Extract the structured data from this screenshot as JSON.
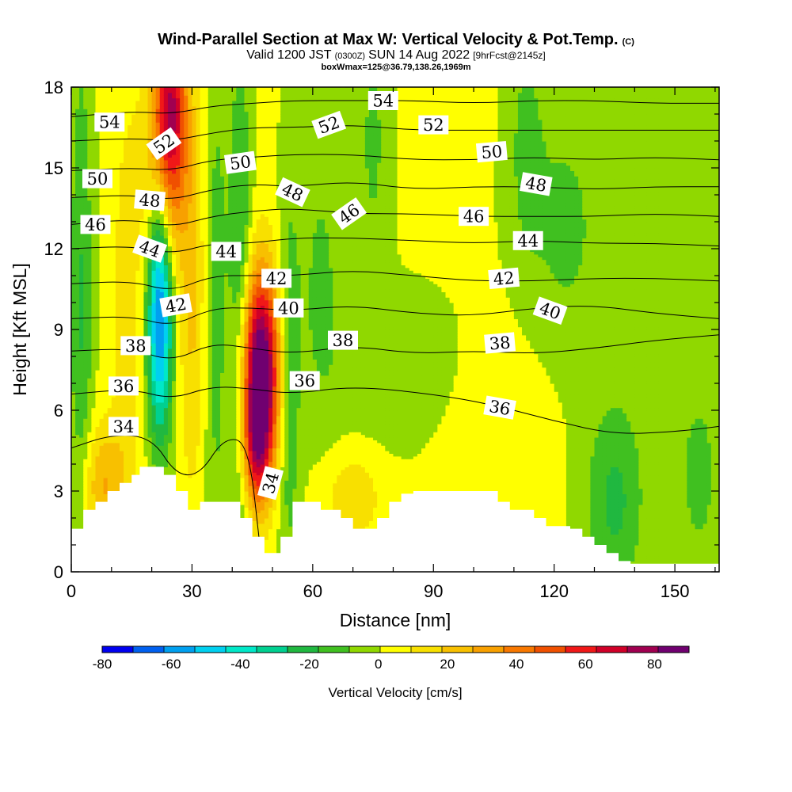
{
  "chart_data": {
    "type": "heatmap",
    "title": "Wind-Parallel Section at Max W: Vertical Velocity & Pot.Temp.",
    "copyright_mark": "(C)",
    "valid_prefix": "Valid 1200 JST",
    "valid_utc": "(0300Z)",
    "valid_date": "SUN 14 Aug 2022",
    "forecast": "[9hrFcst@2145z]",
    "box_info": "boxWmax=125@36.79,138.26,1969m",
    "xlabel": "Distance [nm]",
    "ylabel": "Height [Kft MSL]",
    "xlim": [
      0,
      161
    ],
    "ylim": [
      0,
      18
    ],
    "xticks": [
      0,
      30,
      60,
      90,
      120,
      150
    ],
    "yticks": [
      0,
      3,
      6,
      9,
      12,
      15,
      18
    ],
    "colorbar": {
      "label": "Vertical Velocity [cm/s]",
      "range": [
        -80,
        90
      ],
      "tick_values": [
        -80,
        -60,
        -40,
        -20,
        0,
        20,
        40,
        60,
        80
      ],
      "tick_labels": [
        "-80",
        "-60",
        "-40",
        "-20",
        "0",
        "20",
        "40",
        "60",
        "80"
      ],
      "colors": [
        "#0000f0",
        "#0060f0",
        "#00a0f0",
        "#00d0f0",
        "#00e8c8",
        "#00d090",
        "#20b840",
        "#40c020",
        "#90d800",
        "#ffff00",
        "#f8e000",
        "#f8c000",
        "#f8a000",
        "#f87800",
        "#f05000",
        "#f01818",
        "#d00028",
        "#a00050",
        "#700070"
      ]
    },
    "terrain": {
      "x": [
        0,
        3,
        3,
        6,
        6,
        9,
        9,
        12,
        12,
        15,
        15,
        17,
        17,
        23,
        23,
        26,
        26,
        29,
        29,
        32,
        32,
        35,
        35,
        42,
        42,
        45,
        45,
        48,
        48,
        52,
        52,
        55,
        55,
        58,
        58,
        62,
        62,
        67,
        67,
        70,
        70,
        73,
        73,
        76,
        76,
        79,
        79,
        82,
        82,
        85,
        85,
        94,
        94,
        106,
        106,
        109,
        109,
        112,
        112,
        115,
        115,
        118,
        118,
        124,
        124,
        127,
        127,
        130,
        130,
        133,
        133,
        136,
        136,
        139,
        139,
        142,
        142,
        145,
        145,
        161
      ],
      "height": [
        1.6,
        1.6,
        2.3,
        2.3,
        2.6,
        2.6,
        3.0,
        3.0,
        3.3,
        3.3,
        3.6,
        3.6,
        3.9,
        3.9,
        3.6,
        3.6,
        3.0,
        3.0,
        2.3,
        2.3,
        2.6,
        2.6,
        2.6,
        2.6,
        2.0,
        2.0,
        1.3,
        1.3,
        0.7,
        0.7,
        1.3,
        1.3,
        2.6,
        2.6,
        2.6,
        2.6,
        2.3,
        2.3,
        2.0,
        2.0,
        1.6,
        1.6,
        1.6,
        1.6,
        2.0,
        2.0,
        2.6,
        2.6,
        2.9,
        2.9,
        3.0,
        3.0,
        3.0,
        3.0,
        2.6,
        2.6,
        2.3,
        2.3,
        2.3,
        2.3,
        2.0,
        2.0,
        1.7,
        1.7,
        1.6,
        1.6,
        1.3,
        1.3,
        1.0,
        1.0,
        0.7,
        0.7,
        0.4,
        0.4,
        0.3,
        0.3,
        0.3,
        0.3,
        0.3,
        0.3
      ]
    },
    "w_features": [
      {
        "kind": "updraft",
        "x": 47,
        "height": 7.5,
        "sx": 3.4,
        "sz": 2.6,
        "w": 95
      },
      {
        "kind": "updraft",
        "x": 46,
        "height": 4.5,
        "sx": 2.5,
        "sz": 1.6,
        "w": 40
      },
      {
        "kind": "updraft",
        "x": 24,
        "height": 15.5,
        "sx": 3.4,
        "sz": 2.6,
        "w": 55
      },
      {
        "kind": "updraft",
        "x": 25,
        "height": 18.0,
        "sx": 2.6,
        "sz": 1.8,
        "w": 35
      },
      {
        "kind": "updraft",
        "x": 30,
        "height": 10.0,
        "sx": 2.4,
        "sz": 5.0,
        "w": 18
      },
      {
        "kind": "updraft",
        "x": 14,
        "height": 10.0,
        "sx": 3.0,
        "sz": 6.0,
        "w": 12
      },
      {
        "kind": "updraft",
        "x": 8,
        "height": 3.2,
        "sx": 4.0,
        "sz": 1.6,
        "w": 25
      },
      {
        "kind": "updraft",
        "x": 70,
        "height": 2.8,
        "sx": 5.0,
        "sz": 1.2,
        "w": 15
      },
      {
        "kind": "updraft",
        "x": 107,
        "height": 5.0,
        "sx": 10.0,
        "sz": 3.0,
        "w": 6
      },
      {
        "kind": "downdraft",
        "x": 22,
        "height": 8.5,
        "sx": 2.2,
        "sz": 2.8,
        "w": -50
      },
      {
        "kind": "downdraft",
        "x": 22,
        "height": 12.0,
        "sx": 2.0,
        "sz": 2.5,
        "w": -30
      },
      {
        "kind": "downdraft",
        "x": 42,
        "height": 9.5,
        "sx": 2.0,
        "sz": 7.0,
        "w": -25
      },
      {
        "kind": "downdraft",
        "x": 36,
        "height": 10.0,
        "sx": 2.0,
        "sz": 7.0,
        "w": -15
      },
      {
        "kind": "downdraft",
        "x": 2.5,
        "height": 10.0,
        "sx": 2.0,
        "sz": 7.0,
        "w": -20
      },
      {
        "kind": "downdraft",
        "x": 54,
        "height": 7.0,
        "sx": 2.0,
        "sz": 5.0,
        "w": -20
      },
      {
        "kind": "downdraft",
        "x": 62,
        "height": 11.0,
        "sx": 4.0,
        "sz": 4.0,
        "w": -12
      },
      {
        "kind": "downdraft",
        "x": 75,
        "height": 16.0,
        "sx": 3.0,
        "sz": 4.0,
        "w": -12
      },
      {
        "kind": "downdraft",
        "x": 80,
        "height": 7.5,
        "sx": 12.0,
        "sz": 2.0,
        "w": -8
      },
      {
        "kind": "downdraft",
        "x": 113,
        "height": 16.0,
        "sx": 3.0,
        "sz": 3.0,
        "w": -12
      },
      {
        "kind": "downdraft",
        "x": 122,
        "height": 13.0,
        "sx": 6.0,
        "sz": 3.0,
        "w": -10
      },
      {
        "kind": "downdraft",
        "x": 135,
        "height": 2.5,
        "sx": 5.0,
        "sz": 2.5,
        "w": -20
      },
      {
        "kind": "downdraft",
        "x": 156,
        "height": 3.5,
        "sx": 3.0,
        "sz": 2.0,
        "w": -15
      },
      {
        "kind": "downdraft",
        "x": 140,
        "height": 11.0,
        "sx": 20.0,
        "sz": 6.0,
        "w": -5
      }
    ],
    "theta_contours": [
      {
        "value": 34,
        "x": [
          0,
          10,
          20,
          26,
          32,
          38,
          44,
          47
        ],
        "height": [
          4.6,
          5.1,
          5.0,
          3.6,
          3.6,
          5.0,
          4.8,
          0.8
        ]
      },
      {
        "value": 36,
        "x": [
          0,
          15,
          25,
          35,
          45,
          55,
          70,
          90,
          105,
          120,
          135,
          150,
          161
        ],
        "height": [
          6.6,
          6.8,
          6.4,
          6.9,
          6.8,
          6.6,
          6.9,
          6.6,
          6.2,
          5.6,
          5.1,
          5.2,
          5.4
        ]
      },
      {
        "value": 38,
        "x": [
          0,
          15,
          25,
          35,
          45,
          55,
          70,
          85,
          100,
          115,
          130,
          145,
          161
        ],
        "height": [
          8.2,
          8.3,
          7.8,
          8.5,
          8.3,
          8.1,
          8.4,
          8.1,
          8.2,
          8.1,
          8.3,
          8.6,
          8.8
        ]
      },
      {
        "value": 40,
        "x": [
          0,
          15,
          25,
          35,
          45,
          55,
          70,
          85,
          100,
          115,
          130,
          145,
          161
        ],
        "height": [
          9.4,
          9.5,
          9.1,
          9.8,
          9.8,
          9.7,
          9.9,
          9.6,
          9.5,
          9.8,
          9.9,
          9.6,
          9.4
        ]
      },
      {
        "value": 42,
        "x": [
          0,
          15,
          25,
          35,
          45,
          55,
          70,
          85,
          100,
          115,
          130,
          145,
          161
        ],
        "height": [
          10.7,
          10.8,
          10.4,
          11.0,
          11.0,
          11.0,
          11.2,
          11.0,
          10.8,
          10.8,
          10.9,
          10.9,
          10.8
        ]
      },
      {
        "value": 44,
        "x": [
          0,
          15,
          25,
          35,
          45,
          55,
          70,
          85,
          100,
          115,
          130,
          145,
          161
        ],
        "height": [
          12.0,
          12.1,
          11.8,
          12.2,
          12.2,
          12.4,
          12.4,
          12.3,
          12.2,
          12.3,
          12.2,
          12.2,
          12.1
        ]
      },
      {
        "value": 46,
        "x": [
          0,
          15,
          25,
          35,
          45,
          55,
          70,
          85,
          100,
          115,
          130,
          145,
          161
        ],
        "height": [
          12.9,
          13.1,
          12.8,
          13.2,
          13.4,
          13.5,
          13.3,
          13.3,
          13.2,
          13.2,
          13.2,
          13.3,
          13.2
        ]
      },
      {
        "value": 48,
        "x": [
          0,
          15,
          25,
          35,
          45,
          55,
          70,
          85,
          100,
          115,
          130,
          145,
          161
        ],
        "height": [
          13.9,
          14.0,
          13.8,
          14.2,
          14.4,
          14.3,
          14.5,
          14.2,
          14.3,
          14.3,
          14.2,
          14.3,
          14.3
        ]
      },
      {
        "value": 50,
        "x": [
          0,
          15,
          25,
          35,
          45,
          55,
          70,
          85,
          100,
          115,
          130,
          145,
          161
        ],
        "height": [
          14.9,
          15.0,
          14.9,
          15.3,
          15.4,
          15.5,
          15.5,
          15.3,
          15.3,
          15.4,
          15.3,
          15.4,
          15.3
        ]
      },
      {
        "value": 52,
        "x": [
          0,
          15,
          25,
          35,
          45,
          55,
          70,
          85,
          100,
          115,
          130,
          145,
          161
        ],
        "height": [
          16.0,
          16.1,
          16.0,
          16.3,
          16.5,
          16.5,
          16.6,
          16.4,
          16.4,
          16.4,
          16.4,
          16.4,
          16.4
        ]
      },
      {
        "value": 54,
        "x": [
          0,
          15,
          25,
          35,
          45,
          55,
          70,
          85,
          100,
          115,
          130,
          145,
          161
        ],
        "height": [
          16.9,
          17.1,
          17.0,
          17.3,
          17.4,
          17.5,
          17.5,
          17.5,
          17.4,
          17.5,
          17.5,
          17.4,
          17.4
        ]
      }
    ],
    "contour_labels": [
      {
        "text": "54",
        "x": 9.5,
        "height": 16.7,
        "angle": 0
      },
      {
        "text": "52",
        "x": 23,
        "height": 15.9,
        "angle": -35
      },
      {
        "text": "50",
        "x": 6.5,
        "height": 14.6,
        "angle": 0
      },
      {
        "text": "50",
        "x": 42,
        "height": 15.2,
        "angle": -8
      },
      {
        "text": "48",
        "x": 19.5,
        "height": 13.8,
        "angle": 5
      },
      {
        "text": "48",
        "x": 55,
        "height": 14.1,
        "angle": 25
      },
      {
        "text": "46",
        "x": 6,
        "height": 12.9,
        "angle": 0
      },
      {
        "text": "46",
        "x": 69,
        "height": 13.3,
        "angle": -35
      },
      {
        "text": "44",
        "x": 19.5,
        "height": 12.0,
        "angle": 20
      },
      {
        "text": "44",
        "x": 38.5,
        "height": 11.9,
        "angle": 0
      },
      {
        "text": "42",
        "x": 51,
        "height": 10.9,
        "angle": 0
      },
      {
        "text": "42",
        "x": 26,
        "height": 9.9,
        "angle": -10
      },
      {
        "text": "40",
        "x": 54,
        "height": 9.8,
        "angle": 0
      },
      {
        "text": "38",
        "x": 16,
        "height": 8.4,
        "angle": 0
      },
      {
        "text": "38",
        "x": 67.5,
        "height": 8.6,
        "angle": 0
      },
      {
        "text": "36",
        "x": 13,
        "height": 6.9,
        "angle": 0
      },
      {
        "text": "36",
        "x": 58,
        "height": 7.1,
        "angle": 0
      },
      {
        "text": "34",
        "x": 13,
        "height": 5.4,
        "angle": 0
      },
      {
        "text": "34",
        "x": 49.5,
        "height": 3.3,
        "angle": -75
      },
      {
        "text": "54",
        "x": 77.5,
        "height": 17.5,
        "angle": 0
      },
      {
        "text": "52",
        "x": 64,
        "height": 16.6,
        "angle": -20
      },
      {
        "text": "52",
        "x": 90,
        "height": 16.6,
        "angle": 0
      },
      {
        "text": "50",
        "x": 104.5,
        "height": 15.6,
        "angle": -5
      },
      {
        "text": "48",
        "x": 115.5,
        "height": 14.4,
        "angle": 10
      },
      {
        "text": "46",
        "x": 100,
        "height": 13.2,
        "angle": 0
      },
      {
        "text": "44",
        "x": 113.5,
        "height": 12.3,
        "angle": 0
      },
      {
        "text": "42",
        "x": 107.5,
        "height": 10.9,
        "angle": -5
      },
      {
        "text": "40",
        "x": 119,
        "height": 9.7,
        "angle": 20
      },
      {
        "text": "38",
        "x": 106.5,
        "height": 8.5,
        "angle": -5
      },
      {
        "text": "36",
        "x": 106.5,
        "height": 6.1,
        "angle": 10
      }
    ]
  }
}
